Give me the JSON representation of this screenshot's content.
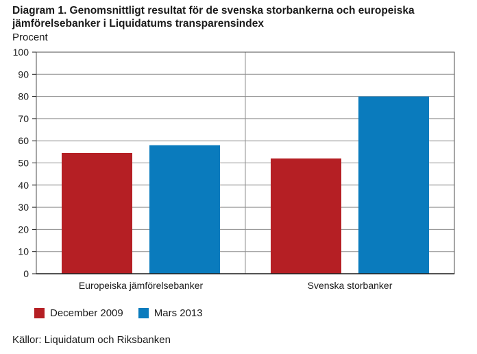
{
  "chart_data": {
    "type": "bar",
    "title": "Diagram 1. Genomsnittligt resultat för de svenska storbankerna och europeiska jämförelsebanker i Liquidatums transparensindex",
    "ylabel": "Procent",
    "xlabel": "",
    "categories": [
      "Europeiska jämförelsebanker",
      "Svenska storbanker"
    ],
    "series": [
      {
        "name": "December 2009",
        "values": [
          54.5,
          52
        ],
        "color": "#b51f24"
      },
      {
        "name": "Mars 2013",
        "values": [
          58,
          80
        ],
        "color": "#0a7bbd"
      }
    ],
    "ylim": [
      0,
      100
    ],
    "yticks": [
      0,
      10,
      20,
      30,
      40,
      50,
      60,
      70,
      80,
      90,
      100
    ],
    "grid": true,
    "legend": "bottom-left",
    "source": "Källor: Liquidatum och Riksbanken"
  }
}
